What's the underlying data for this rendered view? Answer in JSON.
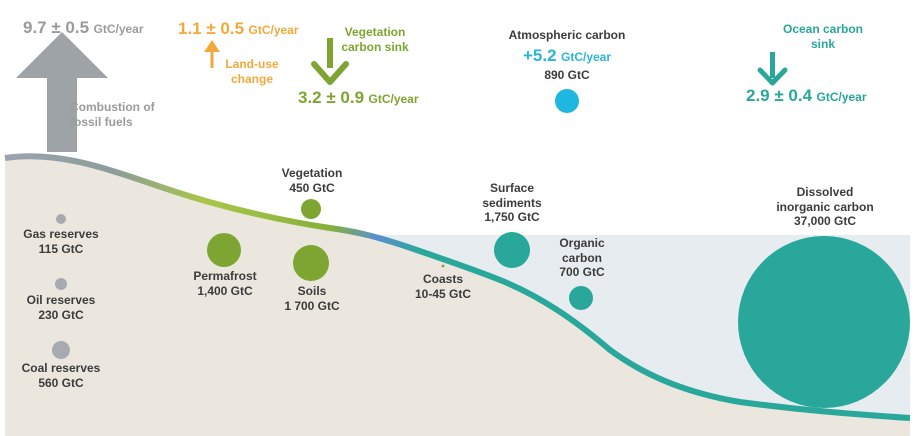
{
  "fossil_flux": {
    "value": "9.7 ± 0.5",
    "unit": "GtC/year",
    "label": [
      "Combustion of",
      "fossil fuels"
    ]
  },
  "landuse_flux": {
    "value": "1.1 ± 0.5",
    "unit": "GtC/year",
    "label": [
      "Land-use",
      "change"
    ]
  },
  "vegetation_sink": {
    "title": [
      "Vegetation",
      "carbon sink"
    ],
    "value": "3.2 ± 0.9",
    "unit": "GtC/year"
  },
  "atmospheric": {
    "title": "Atmospheric carbon",
    "value": "+5.2",
    "unit": "GtC/year",
    "stock": "890 GtC"
  },
  "ocean_sink": {
    "title": [
      "Ocean carbon",
      "sink"
    ],
    "value": "2.9 ± 0.4",
    "unit": "GtC/year"
  },
  "reservoirs": {
    "gas": {
      "name": "Gas reserves",
      "value": "115 GtC"
    },
    "oil": {
      "name": "Oil reserves",
      "value": "230 GtC"
    },
    "coal": {
      "name": "Coal reserves",
      "value": "560 GtC"
    },
    "permafrost": {
      "name": "Permafrost",
      "value": "1,400 GtC"
    },
    "soils": {
      "name": "Soils",
      "value": "1 700 GtC"
    },
    "vegetation": {
      "name": "Vegetation",
      "value": "450 GtC"
    },
    "coasts": {
      "name": "Coasts",
      "value": "10-45 GtC"
    },
    "surface_sediments": {
      "name": [
        "Surface",
        "sediments"
      ],
      "value": "1,750 GtC"
    },
    "organic_carbon": {
      "name": [
        "Organic",
        "carbon"
      ],
      "value": "700 GtC"
    },
    "dissolved_inorganic": {
      "name": [
        "Dissolved",
        "inorganic carbon"
      ],
      "value": "37,000 GtC"
    }
  },
  "colors": {
    "fossil_arrow": "#9ea3a8",
    "landuse": "#f2a93b",
    "vegetation": "#7ea532",
    "atmosphere": "#1fb6e0",
    "ocean": "#2aa79b",
    "land_fill": "#ebe7df",
    "sea_fill": "#e6ecf0"
  }
}
